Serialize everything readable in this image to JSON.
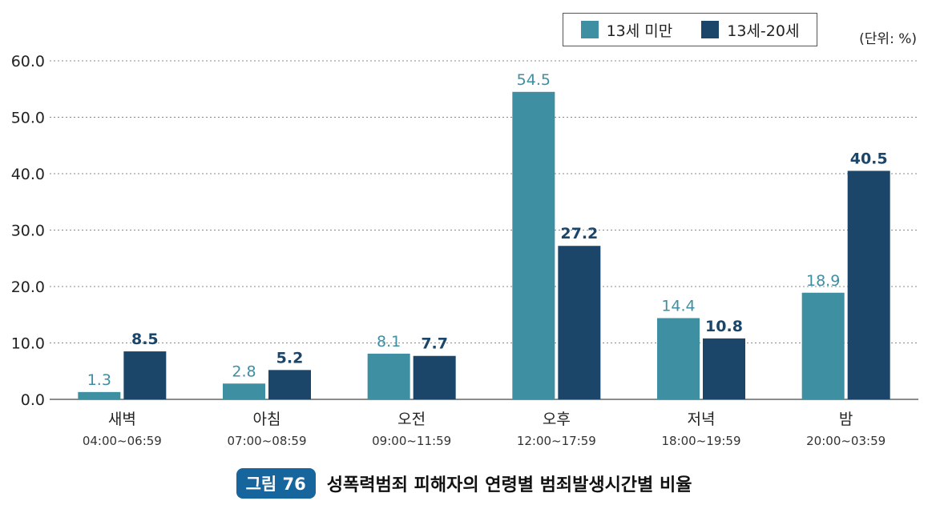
{
  "chart_data": {
    "type": "bar",
    "categories": [
      "새벽",
      "아침",
      "오전",
      "오후",
      "저녁",
      "밤"
    ],
    "category_times": [
      "04:00~06:59",
      "07:00~08:59",
      "09:00~11:59",
      "12:00~17:59",
      "18:00~19:59",
      "20:00~03:59"
    ],
    "series": [
      {
        "name": "13세 미만",
        "values": [
          1.3,
          2.8,
          8.1,
          54.5,
          14.4,
          18.9
        ],
        "color": "#3f8fa3"
      },
      {
        "name": "13세-20세",
        "values": [
          8.5,
          5.2,
          7.7,
          27.2,
          10.8,
          40.5
        ],
        "color": "#1b4669"
      }
    ],
    "y_ticks": [
      "0.0",
      "10.0",
      "20.0",
      "30.0",
      "40.0",
      "50.0",
      "60.0"
    ],
    "ylim": [
      0,
      60
    ],
    "grid": "dotted-horizontal",
    "legend_position": "top-right",
    "unit_label": "(단위: %)"
  },
  "caption": {
    "badge": "그림 76",
    "title": "성폭력범죄 피해자의 연령별 범죄발생시간별 비율"
  }
}
